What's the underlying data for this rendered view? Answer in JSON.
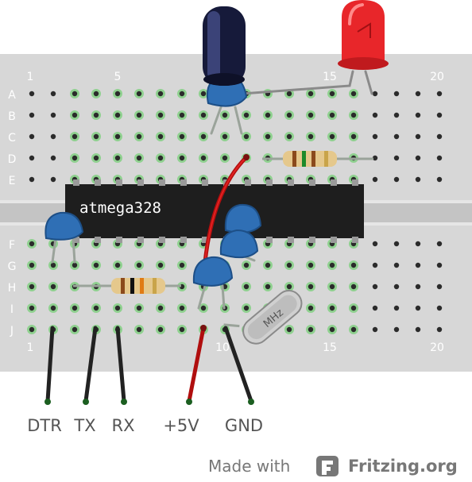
{
  "board": {
    "row_labels_top": [
      "A",
      "B",
      "C",
      "D",
      "E"
    ],
    "row_labels_bottom": [
      "F",
      "G",
      "H",
      "I",
      "J"
    ],
    "col_labels": [
      "1",
      "5",
      "10",
      "15",
      "20"
    ]
  },
  "chip": {
    "label": "atmega328"
  },
  "crystal": {
    "label": "MHz"
  },
  "pins": {
    "dtr": "DTR",
    "tx": "TX",
    "rx": "RX",
    "vcc": "+5V",
    "gnd": "GND"
  },
  "footer": {
    "made_with": "Made with",
    "brand": "Fritzing.org"
  },
  "colors": {
    "board": "#d9d9d9",
    "hole_green": "#6fbf73",
    "wire_red": "#cc1111",
    "capacitor_blue": "#2f6fb5",
    "led_red": "#e8262a"
  }
}
